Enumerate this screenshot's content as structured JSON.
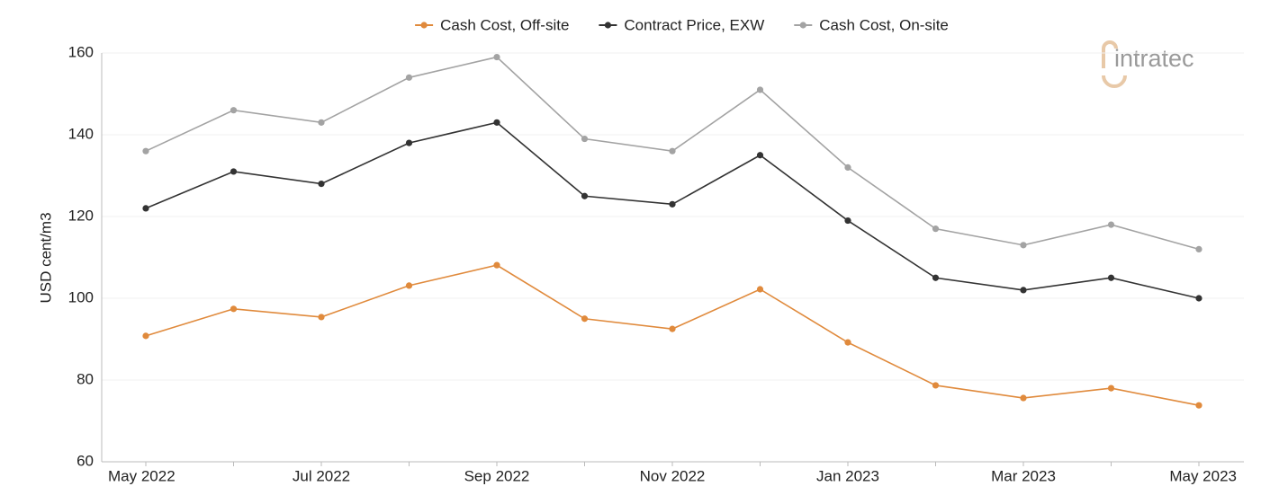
{
  "chart_data": {
    "type": "line",
    "y_label": "USD cent/m3",
    "logo": "intratec",
    "categories": [
      "May 2022",
      null,
      "Jul 2022",
      null,
      "Sep 2022",
      null,
      "Nov 2022",
      null,
      "Jan 2023",
      null,
      "Mar 2023",
      null,
      "May 2023"
    ],
    "series": [
      {
        "name": "Cash Cost, Off-site",
        "color": "#e08a3c",
        "values": [
          90.8,
          97.4,
          95.4,
          103.1,
          108.1,
          95,
          92.5,
          102.2,
          89.2,
          78.7,
          75.6,
          78,
          73.8
        ]
      },
      {
        "name": "Contract Price, EXW",
        "color": "#333333",
        "values": [
          122,
          131,
          128,
          138,
          143,
          125,
          123,
          135,
          119,
          105,
          102,
          105,
          100
        ]
      },
      {
        "name": "Cash Cost, On-site",
        "color": "#a3a3a3",
        "values": [
          136,
          146,
          143,
          154,
          159,
          139,
          136,
          151,
          132,
          117,
          113,
          118,
          112
        ]
      }
    ],
    "ylim": [
      60,
      160
    ],
    "yticks": [
      60,
      80,
      100,
      120,
      140,
      160
    ],
    "grid": true,
    "legend": "top"
  }
}
